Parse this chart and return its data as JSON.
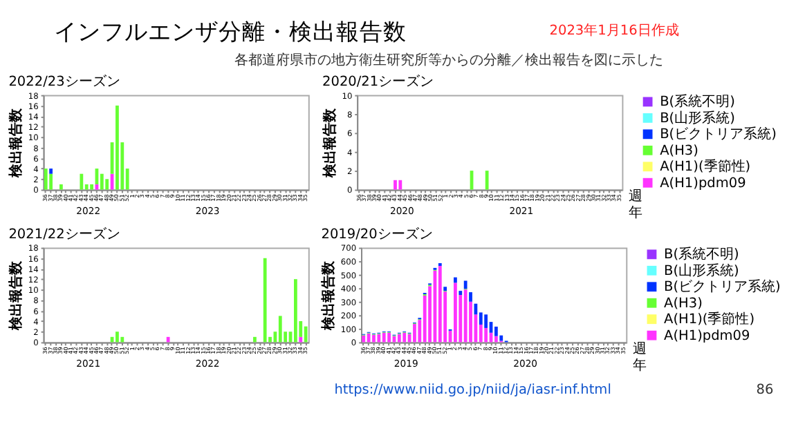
{
  "chart_data": [
    {
      "type": "other",
      "title": "インフルエンザ分離・検出報告数",
      "subtitle": "各都道府県市の地方衛生研究所等からの分離／検出報告を図に示した",
      "annotations": [
        "2023年1月16日作成",
        "https://www.niid.go.jp/niid/ja/iasr-inf.html",
        "86"
      ]
    },
    {
      "type": "bar",
      "stacked": true,
      "title": "2022/23シーズン",
      "ylabel": "検出報告数",
      "ylim": [
        0,
        18
      ],
      "yticks": [
        0,
        2,
        4,
        6,
        8,
        10,
        12,
        14,
        16,
        18
      ],
      "grid": false,
      "legend": false,
      "categories": [
        "36",
        "37",
        "38",
        "39",
        "40",
        "41",
        "42",
        "43",
        "44",
        "45",
        "46",
        "47",
        "48",
        "49",
        "50",
        "51",
        "52",
        "1",
        "2",
        "3",
        "4",
        "5",
        "6",
        "7",
        "8",
        "9",
        "10",
        "11",
        "12",
        "13",
        "14",
        "15",
        "16",
        "17",
        "18",
        "19",
        "20",
        "21",
        "22",
        "23",
        "24",
        "25",
        "26",
        "27",
        "28",
        "29",
        "30",
        "31",
        "32",
        "33",
        "34",
        "35"
      ],
      "annotations": [
        "2022",
        "2023"
      ],
      "series": [
        {
          "color": "#ff33ff",
          "values": [
            0,
            0,
            0,
            0,
            0,
            0,
            0,
            0,
            0,
            0,
            1,
            0,
            0,
            3,
            0,
            0,
            0,
            null,
            null,
            null,
            null,
            null,
            null,
            null,
            null,
            null,
            null,
            null,
            null,
            null,
            null,
            null,
            null,
            null,
            null,
            null,
            null,
            null,
            null,
            null,
            null,
            null,
            null,
            null,
            null,
            null,
            null,
            null,
            null,
            null,
            null,
            null
          ]
        },
        {
          "color": "#66ff33",
          "values": [
            4,
            3,
            0,
            1,
            0,
            0,
            0,
            3,
            1,
            1,
            3,
            3,
            2,
            6,
            16,
            9,
            4,
            null,
            null,
            null,
            null,
            null,
            null,
            null,
            null,
            null,
            null,
            null,
            null,
            null,
            null,
            null,
            null,
            null,
            null,
            null,
            null,
            null,
            null,
            null,
            null,
            null,
            null,
            null,
            null,
            null,
            null,
            null,
            null,
            null,
            null,
            null
          ]
        },
        {
          "color": "#0033ff",
          "values": [
            0,
            1,
            0,
            0,
            0,
            0,
            0,
            0,
            0,
            0,
            0,
            0,
            0,
            0,
            0,
            0,
            0,
            null,
            null,
            null,
            null,
            null,
            null,
            null,
            null,
            null,
            null,
            null,
            null,
            null,
            null,
            null,
            null,
            null,
            null,
            null,
            null,
            null,
            null,
            null,
            null,
            null,
            null,
            null,
            null,
            null,
            null,
            null,
            null,
            null,
            null,
            null
          ]
        }
      ]
    },
    {
      "type": "bar",
      "stacked": true,
      "title": "2020/21シーズン",
      "ylabel": "検出報告数",
      "xlabel": "週",
      "ylim": [
        0,
        10
      ],
      "yticks": [
        0,
        2,
        4,
        6,
        8,
        10
      ],
      "grid": false,
      "legend": "right",
      "categories": [
        "36",
        "37",
        "38",
        "39",
        "40",
        "41",
        "42",
        "43",
        "44",
        "45",
        "46",
        "47",
        "48",
        "49",
        "50",
        "51",
        "52",
        "1",
        "2",
        "3",
        "4",
        "5",
        "6",
        "7",
        "8",
        "9",
        "10",
        "11",
        "12",
        "13",
        "14",
        "15",
        "16",
        "17",
        "18",
        "19",
        "20",
        "21",
        "22",
        "23",
        "24",
        "25",
        "26",
        "27",
        "28",
        "29",
        "30",
        "31",
        "32",
        "33",
        "34",
        "35"
      ],
      "annotations": [
        "2020",
        "2021",
        "年"
      ],
      "series": [
        {
          "name": "A(H1)pdm09",
          "color": "#ff33ff",
          "values": [
            0,
            0,
            0,
            0,
            0,
            0,
            0,
            1,
            1,
            0,
            0,
            0,
            0,
            0,
            0,
            0,
            0,
            0,
            0,
            0,
            0,
            0,
            0,
            0,
            0,
            0,
            0,
            0,
            0,
            0,
            0,
            0,
            0,
            0,
            0,
            0,
            0,
            0,
            0,
            0,
            0,
            0,
            0,
            0,
            0,
            0,
            0,
            0,
            0,
            0,
            0,
            0
          ]
        },
        {
          "name": "A(H1)(季節性)",
          "color": "#ffff66",
          "values": [
            0,
            0,
            0,
            0,
            0,
            0,
            0,
            0,
            0,
            0,
            0,
            0,
            0,
            0,
            0,
            0,
            0,
            0,
            0,
            0,
            0,
            0,
            0,
            0,
            0,
            0,
            0,
            0,
            0,
            0,
            0,
            0,
            0,
            0,
            0,
            0,
            0,
            0,
            0,
            0,
            0,
            0,
            0,
            0,
            0,
            0,
            0,
            0,
            0,
            0,
            0,
            0
          ]
        },
        {
          "name": "A(H3)",
          "color": "#66ff33",
          "values": [
            0,
            0,
            0,
            0,
            0,
            0,
            0,
            0,
            0,
            0,
            0,
            0,
            0,
            0,
            0,
            0,
            0,
            0,
            0,
            0,
            0,
            0,
            2,
            0,
            0,
            2,
            0,
            0,
            0,
            0,
            0,
            0,
            0,
            0,
            0,
            0,
            0,
            0,
            0,
            0,
            0,
            0,
            0,
            0,
            0,
            0,
            0,
            0,
            0,
            0,
            0,
            0
          ]
        },
        {
          "name": "B(ビクトリア系統)",
          "color": "#0033ff",
          "values": [
            0,
            0,
            0,
            0,
            0,
            0,
            0,
            0,
            0,
            0,
            0,
            0,
            0,
            0,
            0,
            0,
            0,
            0,
            0,
            0,
            0,
            0,
            0,
            0,
            0,
            0,
            0,
            0,
            0,
            0,
            0,
            0,
            0,
            0,
            0,
            0,
            0,
            0,
            0,
            0,
            0,
            0,
            0,
            0,
            0,
            0,
            0,
            0,
            0,
            0,
            0,
            0
          ]
        },
        {
          "name": "B(山形系統)",
          "color": "#66ffff",
          "values": [
            0,
            0,
            0,
            0,
            0,
            0,
            0,
            0,
            0,
            0,
            0,
            0,
            0,
            0,
            0,
            0,
            0,
            0,
            0,
            0,
            0,
            0,
            0,
            0,
            0,
            0,
            0,
            0,
            0,
            0,
            0,
            0,
            0,
            0,
            0,
            0,
            0,
            0,
            0,
            0,
            0,
            0,
            0,
            0,
            0,
            0,
            0,
            0,
            0,
            0,
            0,
            0
          ]
        },
        {
          "name": "B(系統不明)",
          "color": "#9933ff",
          "values": [
            0,
            0,
            0,
            0,
            0,
            0,
            0,
            0,
            0,
            0,
            0,
            0,
            0,
            0,
            0,
            0,
            0,
            0,
            0,
            0,
            0,
            0,
            0,
            0,
            0,
            0,
            0,
            0,
            0,
            0,
            0,
            0,
            0,
            0,
            0,
            0,
            0,
            0,
            0,
            0,
            0,
            0,
            0,
            0,
            0,
            0,
            0,
            0,
            0,
            0,
            0,
            0
          ]
        }
      ]
    },
    {
      "type": "bar",
      "stacked": true,
      "title": "2021/22シーズン",
      "ylabel": "検出報告数",
      "ylim": [
        0,
        18
      ],
      "yticks": [
        0,
        2,
        4,
        6,
        8,
        10,
        12,
        14,
        16,
        18
      ],
      "grid": false,
      "legend": false,
      "categories": [
        "36",
        "37",
        "38",
        "39",
        "40",
        "41",
        "42",
        "43",
        "44",
        "45",
        "46",
        "47",
        "48",
        "49",
        "50",
        "51",
        "52",
        "1",
        "2",
        "3",
        "4",
        "5",
        "6",
        "7",
        "8",
        "9",
        "10",
        "11",
        "12",
        "13",
        "14",
        "15",
        "16",
        "17",
        "18",
        "19",
        "20",
        "21",
        "22",
        "23",
        "24",
        "25",
        "26",
        "27",
        "28",
        "29",
        "30",
        "31",
        "32",
        "33",
        "34",
        "35"
      ],
      "annotations": [
        "2021",
        "2022"
      ],
      "series": [
        {
          "color": "#ff33ff",
          "values": [
            0,
            0,
            0,
            0,
            0,
            0,
            0,
            0,
            0,
            0,
            0,
            0,
            0,
            0,
            0,
            0,
            0,
            0,
            0,
            0,
            0,
            0,
            0,
            0,
            1,
            0,
            0,
            0,
            0,
            0,
            0,
            0,
            0,
            0,
            0,
            0,
            0,
            0,
            0,
            0,
            0,
            0,
            0,
            0,
            0,
            0,
            0,
            0,
            0,
            0,
            1,
            0
          ]
        },
        {
          "color": "#66ff33",
          "values": [
            0,
            0,
            0,
            0,
            0,
            0,
            0,
            0,
            0,
            0,
            0,
            0,
            0,
            1,
            2,
            1,
            0,
            0,
            0,
            0,
            0,
            0,
            0,
            0,
            0,
            0,
            0,
            0,
            0,
            0,
            0,
            0,
            0,
            0,
            0,
            0,
            0,
            0,
            0,
            0,
            0,
            1,
            0,
            16,
            1,
            2,
            5,
            2,
            2,
            12,
            3,
            3
          ]
        }
      ]
    },
    {
      "type": "bar",
      "stacked": true,
      "title": "2019/20シーズン",
      "ylabel": "検出報告数",
      "xlabel": "週",
      "ylim": [
        0,
        700
      ],
      "yticks": [
        0,
        100,
        200,
        300,
        400,
        500,
        600,
        700
      ],
      "grid": false,
      "legend": "right",
      "categories": [
        "36",
        "37",
        "38",
        "39",
        "40",
        "41",
        "42",
        "43",
        "44",
        "45",
        "46",
        "47",
        "48",
        "49",
        "50",
        "51",
        "52",
        "1",
        "2",
        "3",
        "4",
        "5",
        "6",
        "7",
        "8",
        "9",
        "10",
        "11",
        "12",
        "13",
        "14",
        "15",
        "16",
        "17",
        "18",
        "19",
        "20",
        "21",
        "22",
        "23",
        "24",
        "25",
        "26",
        "27",
        "28",
        "29",
        "30",
        "31",
        "32",
        "33",
        "34",
        "35"
      ],
      "annotations": [
        "2019",
        "2020",
        "年"
      ],
      "series": [
        {
          "name": "A(H1)pdm09",
          "color": "#ff33ff",
          "values": [
            50,
            65,
            55,
            60,
            70,
            70,
            45,
            60,
            70,
            60,
            135,
            165,
            345,
            415,
            530,
            565,
            375,
            85,
            440,
            350,
            390,
            300,
            205,
            130,
            105,
            70,
            45,
            10,
            0,
            0,
            0,
            0,
            0,
            0,
            0,
            0,
            0,
            0,
            0,
            0,
            0,
            0,
            0,
            0,
            0,
            0,
            0,
            0,
            0,
            0,
            0,
            0
          ]
        },
        {
          "name": "A(H1)(季節性)",
          "color": "#ffff66",
          "values": [
            0,
            0,
            0,
            0,
            0,
            0,
            0,
            0,
            0,
            0,
            0,
            0,
            0,
            0,
            0,
            0,
            0,
            0,
            0,
            0,
            0,
            0,
            0,
            0,
            0,
            0,
            0,
            0,
            0,
            0,
            0,
            0,
            0,
            0,
            0,
            0,
            0,
            0,
            0,
            0,
            0,
            0,
            0,
            0,
            0,
            0,
            0,
            0,
            0,
            0,
            0,
            0
          ]
        },
        {
          "name": "A(H3)",
          "color": "#66ff33",
          "values": [
            5,
            5,
            5,
            5,
            5,
            5,
            5,
            5,
            5,
            5,
            5,
            5,
            10,
            10,
            5,
            null,
            5,
            0,
            null,
            null,
            5,
            0,
            0,
            0,
            0,
            0,
            0,
            0,
            0,
            0,
            0,
            0,
            0,
            0,
            0,
            0,
            0,
            0,
            0,
            0,
            0,
            0,
            0,
            0,
            0,
            0,
            0,
            0,
            0,
            0,
            0,
            0
          ]
        },
        {
          "name": "B(ビクトリア系統)",
          "color": "#0033ff",
          "values": [
            5,
            5,
            5,
            5,
            5,
            5,
            5,
            5,
            5,
            5,
            5,
            10,
            10,
            10,
            15,
            20,
            30,
            10,
            40,
            30,
            60,
            70,
            80,
            90,
            100,
            80,
            70,
            40,
            10,
            0,
            0,
            0,
            0,
            0,
            0,
            0,
            0,
            0,
            0,
            0,
            0,
            0,
            0,
            0,
            0,
            0,
            0,
            0,
            0,
            0,
            0,
            0
          ]
        },
        {
          "name": "B(山形系統)",
          "color": "#66ffff",
          "values": [
            0,
            0,
            0,
            0,
            0,
            0,
            0,
            0,
            0,
            0,
            0,
            0,
            0,
            0,
            0,
            0,
            0,
            0,
            0,
            0,
            0,
            0,
            0,
            0,
            0,
            0,
            0,
            0,
            0,
            0,
            0,
            0,
            0,
            0,
            0,
            0,
            0,
            0,
            0,
            0,
            0,
            0,
            0,
            0,
            0,
            0,
            0,
            0,
            0,
            0,
            0,
            0
          ]
        },
        {
          "name": "B(系統不明)",
          "color": "#9933ff",
          "values": [
            0,
            0,
            0,
            0,
            0,
            0,
            0,
            0,
            0,
            0,
            0,
            0,
            0,
            0,
            0,
            0,
            0,
            0,
            0,
            0,
            0,
            0,
            0,
            0,
            0,
            0,
            0,
            0,
            0,
            0,
            0,
            0,
            0,
            0,
            0,
            0,
            0,
            0,
            0,
            0,
            0,
            0,
            0,
            0,
            0,
            0,
            0,
            0,
            0,
            0,
            0,
            0
          ]
        }
      ]
    }
  ]
}
